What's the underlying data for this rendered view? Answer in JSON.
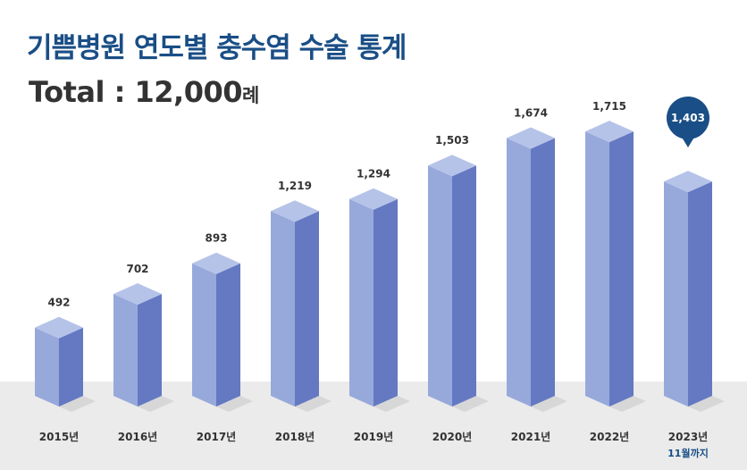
{
  "header": {
    "title": "기쁨병원 연도별 충수염 수술 통계",
    "total_label": "Total : ",
    "total_value": "12,000",
    "total_unit": "례"
  },
  "colors": {
    "title": "#1a4e86",
    "bar_front": "#97a9db",
    "bar_side": "#6479c2",
    "bar_top": "#b5c3e8",
    "floor": "#ebebeb",
    "callout": "#1a4e86"
  },
  "chart_data": {
    "type": "bar",
    "style": "3d-column",
    "categories": [
      "2015년",
      "2016년",
      "2017년",
      "2018년",
      "2019년",
      "2020년",
      "2021년",
      "2022년",
      "2023년"
    ],
    "values": [
      492,
      702,
      893,
      1219,
      1294,
      1503,
      1674,
      1715,
      1403
    ],
    "value_labels": [
      "492",
      "702",
      "893",
      "1,219",
      "1,294",
      "1,503",
      "1,674",
      "1,715",
      "1,403"
    ],
    "highlight_index": 8,
    "category_notes": [
      "",
      "",
      "",
      "",
      "",
      "",
      "",
      "",
      "11월까지"
    ],
    "grid": false,
    "legend": "none"
  }
}
